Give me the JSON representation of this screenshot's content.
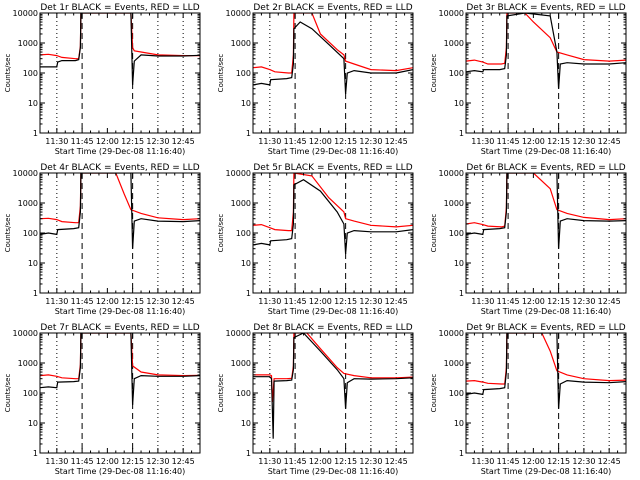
{
  "chart_data": {
    "type": "line",
    "layout": "3x3 grid of panels",
    "y_scale": "log",
    "ylim": [
      1,
      10000
    ],
    "xlim": [
      "11:20",
      "12:55"
    ],
    "ylabel": "Counts/sec",
    "xlabel": "Start Time (29-Dec-08 11:16:40)",
    "x_ticks": [
      "11:30",
      "11:45",
      "12:00",
      "12:15",
      "12:30",
      "12:45"
    ],
    "y_ticks": [
      "1",
      "10",
      "100",
      "1000",
      "10000"
    ],
    "colors": {
      "events": "#000000",
      "lld": "#ff0000"
    },
    "vertical_lines": {
      "dotted": [
        "11:30",
        "12:30",
        "12:45"
      ],
      "dashed": [
        "11:45",
        "12:15"
      ]
    },
    "panels": [
      {
        "title": "Det 1r BLACK = Events, RED = LLD",
        "events": [
          [
            "11:20",
            160
          ],
          [
            "11:23",
            160
          ],
          [
            "11:30",
            160
          ],
          [
            "11:30.5",
            230
          ],
          [
            "11:33",
            260
          ],
          [
            "11:41",
            260
          ],
          [
            "11:43",
            280
          ],
          [
            "11:44",
            700
          ],
          [
            "11:44.3",
            10000
          ],
          [
            "11:55",
            10000
          ],
          [
            "12:14",
            10000
          ],
          [
            "12:15",
            40
          ],
          [
            "12:16",
            250
          ],
          [
            "12:20",
            400
          ],
          [
            "12:30",
            370
          ],
          [
            "12:45",
            370
          ],
          [
            "12:55",
            390
          ]
        ],
        "lld": [
          [
            "11:20",
            400
          ],
          [
            "11:25",
            420
          ],
          [
            "11:30",
            380
          ],
          [
            "11:33",
            330
          ],
          [
            "11:41",
            300
          ],
          [
            "11:43",
            300
          ],
          [
            "11:44",
            800
          ],
          [
            "11:44.3",
            10000
          ],
          [
            "11:55",
            10000
          ],
          [
            "12:14",
            10000
          ],
          [
            "12:15",
            700
          ],
          [
            "12:16",
            550
          ],
          [
            "12:20",
            500
          ],
          [
            "12:30",
            400
          ],
          [
            "12:45",
            380
          ],
          [
            "12:55",
            380
          ]
        ]
      },
      {
        "title": "Det 2r BLACK = Events, RED = LLD",
        "events": [
          [
            "11:20",
            40
          ],
          [
            "11:25",
            45
          ],
          [
            "11:30",
            40
          ],
          [
            "11:30.5",
            60
          ],
          [
            "11:40",
            65
          ],
          [
            "11:43",
            70
          ],
          [
            "11:44",
            200
          ],
          [
            "11:44.3",
            3000
          ],
          [
            "11:48",
            5000
          ],
          [
            "11:55",
            3000
          ],
          [
            "12:05",
            900
          ],
          [
            "12:14",
            300
          ],
          [
            "12:15",
            20
          ],
          [
            "12:16",
            100
          ],
          [
            "12:20",
            120
          ],
          [
            "12:30",
            100
          ],
          [
            "12:45",
            100
          ],
          [
            "12:55",
            130
          ]
        ],
        "lld": [
          [
            "11:20",
            150
          ],
          [
            "11:25",
            160
          ],
          [
            "11:30",
            130
          ],
          [
            "11:33",
            110
          ],
          [
            "11:41",
            100
          ],
          [
            "11:43",
            100
          ],
          [
            "11:44",
            400
          ],
          [
            "11:44.3",
            10000
          ],
          [
            "11:55",
            10000
          ],
          [
            "12:00",
            2000
          ],
          [
            "12:10",
            600
          ],
          [
            "12:14",
            400
          ],
          [
            "12:15",
            250
          ],
          [
            "12:20",
            200
          ],
          [
            "12:30",
            130
          ],
          [
            "12:45",
            120
          ],
          [
            "12:55",
            150
          ]
        ]
      },
      {
        "title": "Det 3r BLACK = Events, RED = LLD",
        "events": [
          [
            "11:20",
            110
          ],
          [
            "11:25",
            120
          ],
          [
            "11:30",
            110
          ],
          [
            "11:30.5",
            130
          ],
          [
            "11:40",
            130
          ],
          [
            "11:43",
            140
          ],
          [
            "11:44",
            400
          ],
          [
            "11:44.3",
            8000
          ],
          [
            "11:55",
            10000
          ],
          [
            "12:10",
            8000
          ],
          [
            "12:14",
            500
          ],
          [
            "12:15",
            30
          ],
          [
            "12:16",
            200
          ],
          [
            "12:20",
            220
          ],
          [
            "12:30",
            200
          ],
          [
            "12:45",
            200
          ],
          [
            "12:55",
            220
          ]
        ],
        "lld": [
          [
            "11:20",
            250
          ],
          [
            "11:25",
            270
          ],
          [
            "11:30",
            230
          ],
          [
            "11:33",
            200
          ],
          [
            "11:41",
            200
          ],
          [
            "11:43",
            210
          ],
          [
            "11:44",
            700
          ],
          [
            "11:44.3",
            10000
          ],
          [
            "11:55",
            10000
          ],
          [
            "12:00",
            5000
          ],
          [
            "12:10",
            1500
          ],
          [
            "12:14",
            500
          ],
          [
            "12:20",
            400
          ],
          [
            "12:30",
            280
          ],
          [
            "12:45",
            250
          ],
          [
            "12:55",
            270
          ]
        ]
      },
      {
        "title": "Det 4r BLACK = Events, RED = LLD",
        "events": [
          [
            "11:20",
            90
          ],
          [
            "11:25",
            100
          ],
          [
            "11:30",
            90
          ],
          [
            "11:30.5",
            130
          ],
          [
            "11:40",
            140
          ],
          [
            "11:43",
            150
          ],
          [
            "11:44",
            500
          ],
          [
            "11:44.3",
            10000
          ],
          [
            "12:14",
            10000
          ],
          [
            "12:15",
            30
          ],
          [
            "12:16",
            250
          ],
          [
            "12:20",
            300
          ],
          [
            "12:30",
            250
          ],
          [
            "12:45",
            240
          ],
          [
            "12:55",
            260
          ]
        ],
        "lld": [
          [
            "11:20",
            300
          ],
          [
            "11:25",
            310
          ],
          [
            "11:30",
            280
          ],
          [
            "11:33",
            240
          ],
          [
            "11:41",
            220
          ],
          [
            "11:43",
            220
          ],
          [
            "11:44",
            800
          ],
          [
            "11:44.3",
            10000
          ],
          [
            "12:05",
            10000
          ],
          [
            "12:10",
            2000
          ],
          [
            "12:14",
            600
          ],
          [
            "12:20",
            450
          ],
          [
            "12:30",
            320
          ],
          [
            "12:45",
            280
          ],
          [
            "12:55",
            300
          ]
        ]
      },
      {
        "title": "Det 5r BLACK = Events, RED = LLD",
        "events": [
          [
            "11:20",
            40
          ],
          [
            "11:25",
            45
          ],
          [
            "11:30",
            40
          ],
          [
            "11:30.5",
            55
          ],
          [
            "11:40",
            60
          ],
          [
            "11:43",
            65
          ],
          [
            "11:44",
            200
          ],
          [
            "11:44.3",
            4000
          ],
          [
            "11:50",
            6000
          ],
          [
            "12:00",
            2500
          ],
          [
            "12:10",
            500
          ],
          [
            "12:14",
            200
          ],
          [
            "12:15",
            20
          ],
          [
            "12:16",
            100
          ],
          [
            "12:20",
            120
          ],
          [
            "12:30",
            110
          ],
          [
            "12:45",
            110
          ],
          [
            "12:55",
            130
          ]
        ],
        "lld": [
          [
            "11:20",
            180
          ],
          [
            "11:25",
            190
          ],
          [
            "11:30",
            150
          ],
          [
            "11:33",
            130
          ],
          [
            "11:41",
            120
          ],
          [
            "11:43",
            120
          ],
          [
            "11:44",
            500
          ],
          [
            "11:44.3",
            10000
          ],
          [
            "11:55",
            8000
          ],
          [
            "12:05",
            1500
          ],
          [
            "12:14",
            500
          ],
          [
            "12:15",
            300
          ],
          [
            "12:20",
            250
          ],
          [
            "12:30",
            180
          ],
          [
            "12:45",
            160
          ],
          [
            "12:55",
            180
          ]
        ]
      },
      {
        "title": "Det 6r BLACK = Events, RED = LLD",
        "events": [
          [
            "11:20",
            90
          ],
          [
            "11:25",
            100
          ],
          [
            "11:30",
            90
          ],
          [
            "11:30.5",
            130
          ],
          [
            "11:40",
            140
          ],
          [
            "11:43",
            150
          ],
          [
            "11:44",
            500
          ],
          [
            "11:44.3",
            10000
          ],
          [
            "12:14",
            10000
          ],
          [
            "12:15",
            30
          ],
          [
            "12:16",
            250
          ],
          [
            "12:20",
            300
          ],
          [
            "12:30",
            260
          ],
          [
            "12:45",
            250
          ],
          [
            "12:55",
            260
          ]
        ],
        "lld": [
          [
            "11:20",
            200
          ],
          [
            "11:25",
            220
          ],
          [
            "11:30",
            190
          ],
          [
            "11:33",
            170
          ],
          [
            "11:41",
            160
          ],
          [
            "11:43",
            170
          ],
          [
            "11:44",
            700
          ],
          [
            "11:44.3",
            10000
          ],
          [
            "12:00",
            10000
          ],
          [
            "12:10",
            3000
          ],
          [
            "12:14",
            600
          ],
          [
            "12:20",
            450
          ],
          [
            "12:30",
            330
          ],
          [
            "12:45",
            280
          ],
          [
            "12:55",
            300
          ]
        ]
      },
      {
        "title": "Det 7r BLACK = Events, RED = LLD",
        "events": [
          [
            "11:20",
            150
          ],
          [
            "11:25",
            160
          ],
          [
            "11:30",
            150
          ],
          [
            "11:30.5",
            230
          ],
          [
            "11:40",
            240
          ],
          [
            "11:43",
            250
          ],
          [
            "11:44",
            700
          ],
          [
            "11:44.3",
            10000
          ],
          [
            "12:14",
            10000
          ],
          [
            "12:15",
            40
          ],
          [
            "12:16",
            300
          ],
          [
            "12:20",
            380
          ],
          [
            "12:30",
            360
          ],
          [
            "12:45",
            360
          ],
          [
            "12:55",
            380
          ]
        ],
        "lld": [
          [
            "11:20",
            380
          ],
          [
            "11:25",
            400
          ],
          [
            "11:30",
            360
          ],
          [
            "11:33",
            320
          ],
          [
            "11:41",
            300
          ],
          [
            "11:43",
            300
          ],
          [
            "11:44",
            900
          ],
          [
            "11:44.3",
            10000
          ],
          [
            "12:14",
            10000
          ],
          [
            "12:15",
            800
          ],
          [
            "12:20",
            500
          ],
          [
            "12:30",
            400
          ],
          [
            "12:45",
            380
          ],
          [
            "12:55",
            390
          ]
        ]
      },
      {
        "title": "Det 8r BLACK = Events, RED = LLD",
        "events": [
          [
            "11:20",
            350
          ],
          [
            "11:30",
            350
          ],
          [
            "11:31",
            300
          ],
          [
            "11:32",
            3
          ],
          [
            "11:32.5",
            250
          ],
          [
            "11:40",
            260
          ],
          [
            "11:43",
            270
          ],
          [
            "11:44",
            600
          ],
          [
            "11:44.3",
            7000
          ],
          [
            "11:50",
            10000
          ],
          [
            "12:00",
            2500
          ],
          [
            "12:10",
            600
          ],
          [
            "12:14",
            300
          ],
          [
            "12:15",
            30
          ],
          [
            "12:16",
            220
          ],
          [
            "12:20",
            300
          ],
          [
            "12:30",
            290
          ],
          [
            "12:45",
            300
          ],
          [
            "12:55",
            320
          ]
        ],
        "lld": [
          [
            "11:20",
            400
          ],
          [
            "11:30",
            400
          ],
          [
            "11:31",
            380
          ],
          [
            "11:31.5",
            50
          ],
          [
            "11:32.5",
            300
          ],
          [
            "11:40",
            300
          ],
          [
            "11:43",
            310
          ],
          [
            "11:44",
            800
          ],
          [
            "11:44.3",
            10000
          ],
          [
            "11:52",
            10000
          ],
          [
            "12:00",
            3000
          ],
          [
            "12:10",
            700
          ],
          [
            "12:14",
            450
          ],
          [
            "12:20",
            380
          ],
          [
            "12:30",
            320
          ],
          [
            "12:45",
            320
          ],
          [
            "12:55",
            340
          ]
        ]
      },
      {
        "title": "Det 9r BLACK = Events, RED = LLD",
        "events": [
          [
            "11:20",
            90
          ],
          [
            "11:25",
            100
          ],
          [
            "11:30",
            90
          ],
          [
            "11:30.5",
            130
          ],
          [
            "11:40",
            140
          ],
          [
            "11:43",
            150
          ],
          [
            "11:44",
            500
          ],
          [
            "11:44.3",
            10000
          ],
          [
            "12:14",
            10000
          ],
          [
            "12:15",
            30
          ],
          [
            "12:16",
            200
          ],
          [
            "12:20",
            260
          ],
          [
            "12:30",
            230
          ],
          [
            "12:45",
            220
          ],
          [
            "12:55",
            240
          ]
        ],
        "lld": [
          [
            "11:20",
            250
          ],
          [
            "11:25",
            260
          ],
          [
            "11:30",
            230
          ],
          [
            "11:33",
            210
          ],
          [
            "11:41",
            200
          ],
          [
            "11:43",
            200
          ],
          [
            "11:44",
            700
          ],
          [
            "11:44.3",
            10000
          ],
          [
            "12:05",
            10000
          ],
          [
            "12:10",
            2500
          ],
          [
            "12:14",
            550
          ],
          [
            "12:20",
            400
          ],
          [
            "12:30",
            300
          ],
          [
            "12:45",
            260
          ],
          [
            "12:55",
            270
          ]
        ]
      }
    ]
  }
}
